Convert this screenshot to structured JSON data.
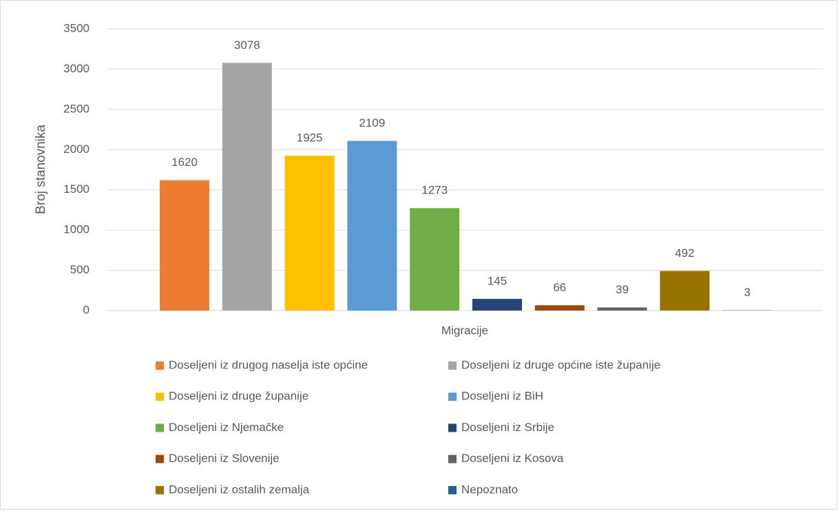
{
  "chart_data": {
    "type": "bar",
    "y_label": "Broj stanovnika",
    "x_label": "Migracije",
    "categories": [
      "Migracije"
    ],
    "series": [
      {
        "name": "Doseljeni iz drugog naselja iste općine",
        "color": "#ED7D31",
        "values": [
          1620
        ]
      },
      {
        "name": "Doseljeni iz druge općine iste županije",
        "color": "#A5A5A5",
        "values": [
          3078
        ]
      },
      {
        "name": "Doseljeni iz druge županije",
        "color": "#FFC000",
        "values": [
          1925
        ]
      },
      {
        "name": "Doseljeni iz BiH",
        "color": "#5B9BD5",
        "values": [
          2109
        ]
      },
      {
        "name": "Doseljeni iz Njemačke",
        "color": "#70AD47",
        "values": [
          1273
        ]
      },
      {
        "name": "Doseljeni iz Srbije",
        "color": "#264478",
        "values": [
          145
        ]
      },
      {
        "name": "Doseljeni iz Slovenije",
        "color": "#9E480E",
        "values": [
          66
        ]
      },
      {
        "name": "Doseljeni iz Kosova",
        "color": "#636363",
        "values": [
          39
        ]
      },
      {
        "name": "Doseljeni iz ostalih zemalja",
        "color": "#997300",
        "values": [
          492
        ]
      },
      {
        "name": "Nepoznato",
        "color": "#255E91",
        "values": [
          3
        ]
      }
    ],
    "ylim": [
      0,
      3500
    ],
    "yticks": [
      0,
      500,
      1000,
      1500,
      2000,
      2500,
      3000,
      3500
    ],
    "grid": true,
    "legend": "bottom"
  }
}
